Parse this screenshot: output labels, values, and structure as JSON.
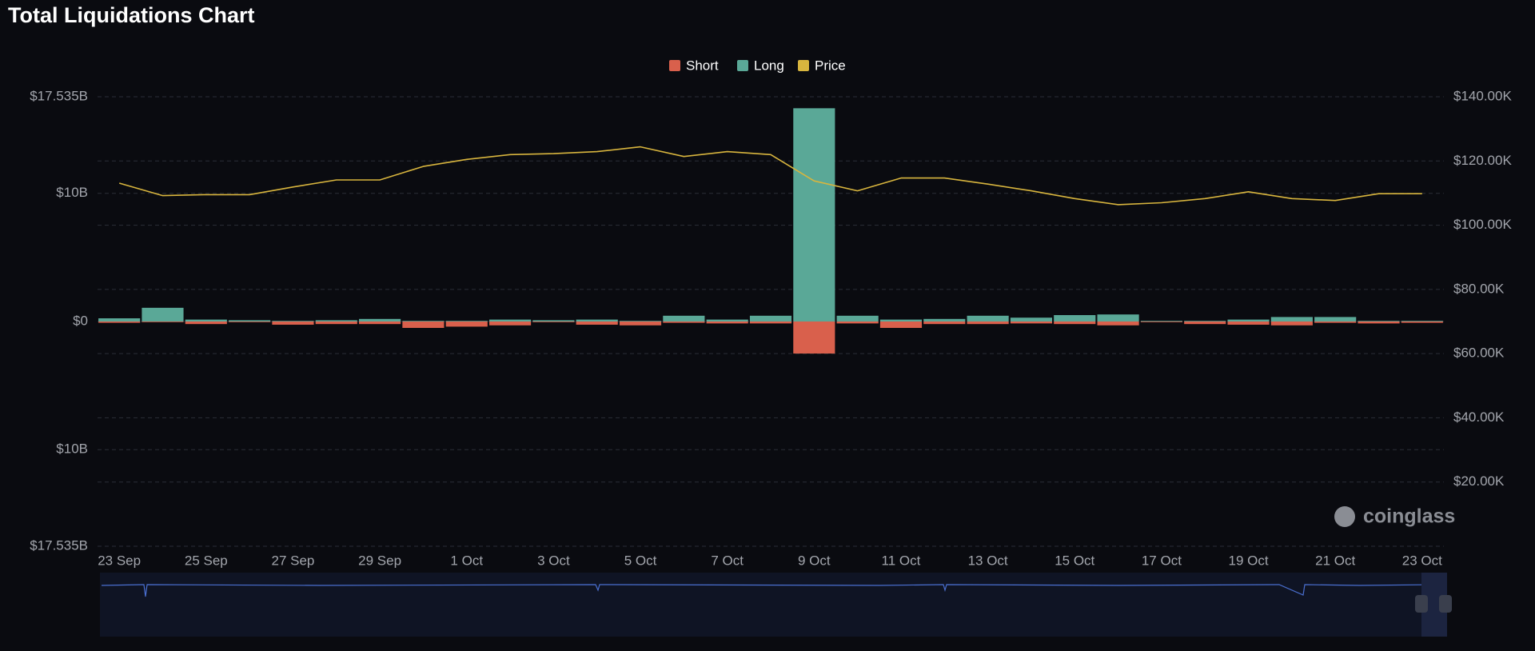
{
  "chart_data": {
    "type": "bar",
    "title": "Total Liquidations Chart",
    "watermark": "coinglass",
    "categories": [
      "23 Sep",
      null,
      "25 Sep",
      null,
      "27 Sep",
      null,
      "29 Sep",
      null,
      "1 Oct",
      null,
      "3 Oct",
      null,
      "5 Oct",
      null,
      "7 Oct",
      null,
      "9 Oct",
      null,
      "11 Oct",
      null,
      "13 Oct",
      null,
      "15 Oct",
      null,
      "17 Oct",
      null,
      "19 Oct",
      null,
      "21 Oct",
      null,
      "23 Oct"
    ],
    "series": [
      {
        "name": "Short",
        "color": "#d9604c",
        "values": [
          -0.1,
          -0.05,
          -0.2,
          -0.05,
          -0.25,
          -0.2,
          -0.2,
          -0.5,
          -0.4,
          -0.3,
          -0.05,
          -0.25,
          -0.3,
          -0.1,
          -0.15,
          -0.15,
          -2.5,
          -0.15,
          -0.5,
          -0.2,
          -0.2,
          -0.15,
          -0.2,
          -0.3,
          -0.05,
          -0.2,
          -0.25,
          -0.3,
          -0.1,
          -0.15,
          -0.1
        ]
      },
      {
        "name": "Long",
        "color": "#5aa897",
        "values": [
          0.25,
          1.07,
          0.15,
          0.1,
          0.05,
          0.1,
          0.2,
          0.05,
          0.05,
          0.15,
          0.1,
          0.15,
          0.05,
          0.45,
          0.15,
          0.45,
          16.64,
          0.45,
          0.15,
          0.2,
          0.45,
          0.3,
          0.5,
          0.55,
          0.05,
          0.05,
          0.15,
          0.35,
          0.35,
          0.05,
          0.05
        ]
      },
      {
        "name": "Price",
        "color": "#d8b53e",
        "axis": "y2",
        "values": [
          113100,
          109200,
          109500,
          109500,
          111900,
          114100,
          114100,
          118300,
          120500,
          122000,
          122300,
          122900,
          124400,
          121400,
          122900,
          122000,
          113800,
          110700,
          114700,
          114700,
          112800,
          110700,
          108300,
          106400,
          107000,
          108300,
          110400,
          108300,
          107700,
          109800,
          109800
        ]
      }
    ],
    "ylim": [
      -17.535,
      17.535
    ],
    "yticks": [
      {
        "value": 17.535,
        "label": "$17.535B"
      },
      {
        "value": 10,
        "label": "$10B"
      },
      {
        "value": 0,
        "label": "$0"
      },
      {
        "value": -10,
        "label": "$10B"
      },
      {
        "value": -17.535,
        "label": "$17.535B"
      }
    ],
    "y2lim": [
      0,
      140000
    ],
    "y2ticks": [
      {
        "value": 20000,
        "label": "$20.00K"
      },
      {
        "value": 40000,
        "label": "$40.00K"
      },
      {
        "value": 60000,
        "label": "$60.00K"
      },
      {
        "value": 80000,
        "label": "$80.00K"
      },
      {
        "value": 100000,
        "label": "$100.00K"
      },
      {
        "value": 120000,
        "label": "$120.00K"
      },
      {
        "value": 140000,
        "label": "$140.00K"
      }
    ],
    "grid": true
  }
}
